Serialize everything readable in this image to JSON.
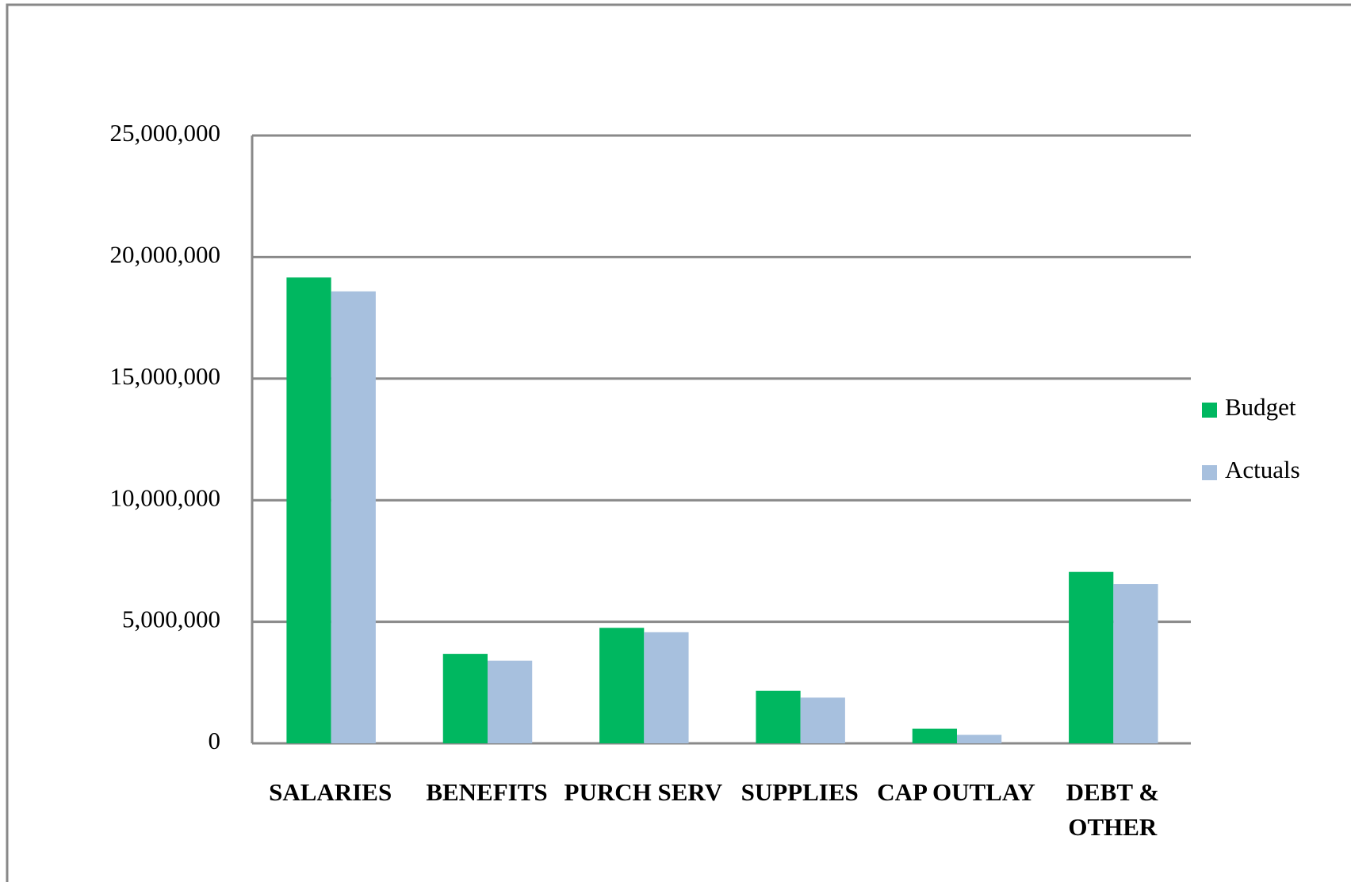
{
  "chart_data": {
    "type": "bar",
    "categories": [
      "SALARIES",
      "BENEFITS",
      "PURCH SERV",
      "SUPPLIES",
      "CAP OUTLAY",
      "DEBT & OTHER"
    ],
    "series": [
      {
        "name": "Budget",
        "color": "#00b760",
        "values": [
          19160000,
          3680000,
          4750000,
          2160000,
          600000,
          7050000
        ]
      },
      {
        "name": "Actuals",
        "color": "#a7c0de",
        "values": [
          18590000,
          3400000,
          4570000,
          1880000,
          350000,
          6550000
        ]
      }
    ],
    "ylim": [
      0,
      25000000
    ],
    "yticks": [
      0,
      {
        "value": 5000000,
        "label": "5,000,000"
      },
      {
        "value": 10000000,
        "label": "10,000,000"
      },
      {
        "value": 15000000,
        "label": "15,000,000"
      },
      {
        "value": 20000000,
        "label": "20,000,000"
      },
      {
        "value": 25000000,
        "label": "25,000,000"
      }
    ],
    "grid": true,
    "legend": "right"
  }
}
